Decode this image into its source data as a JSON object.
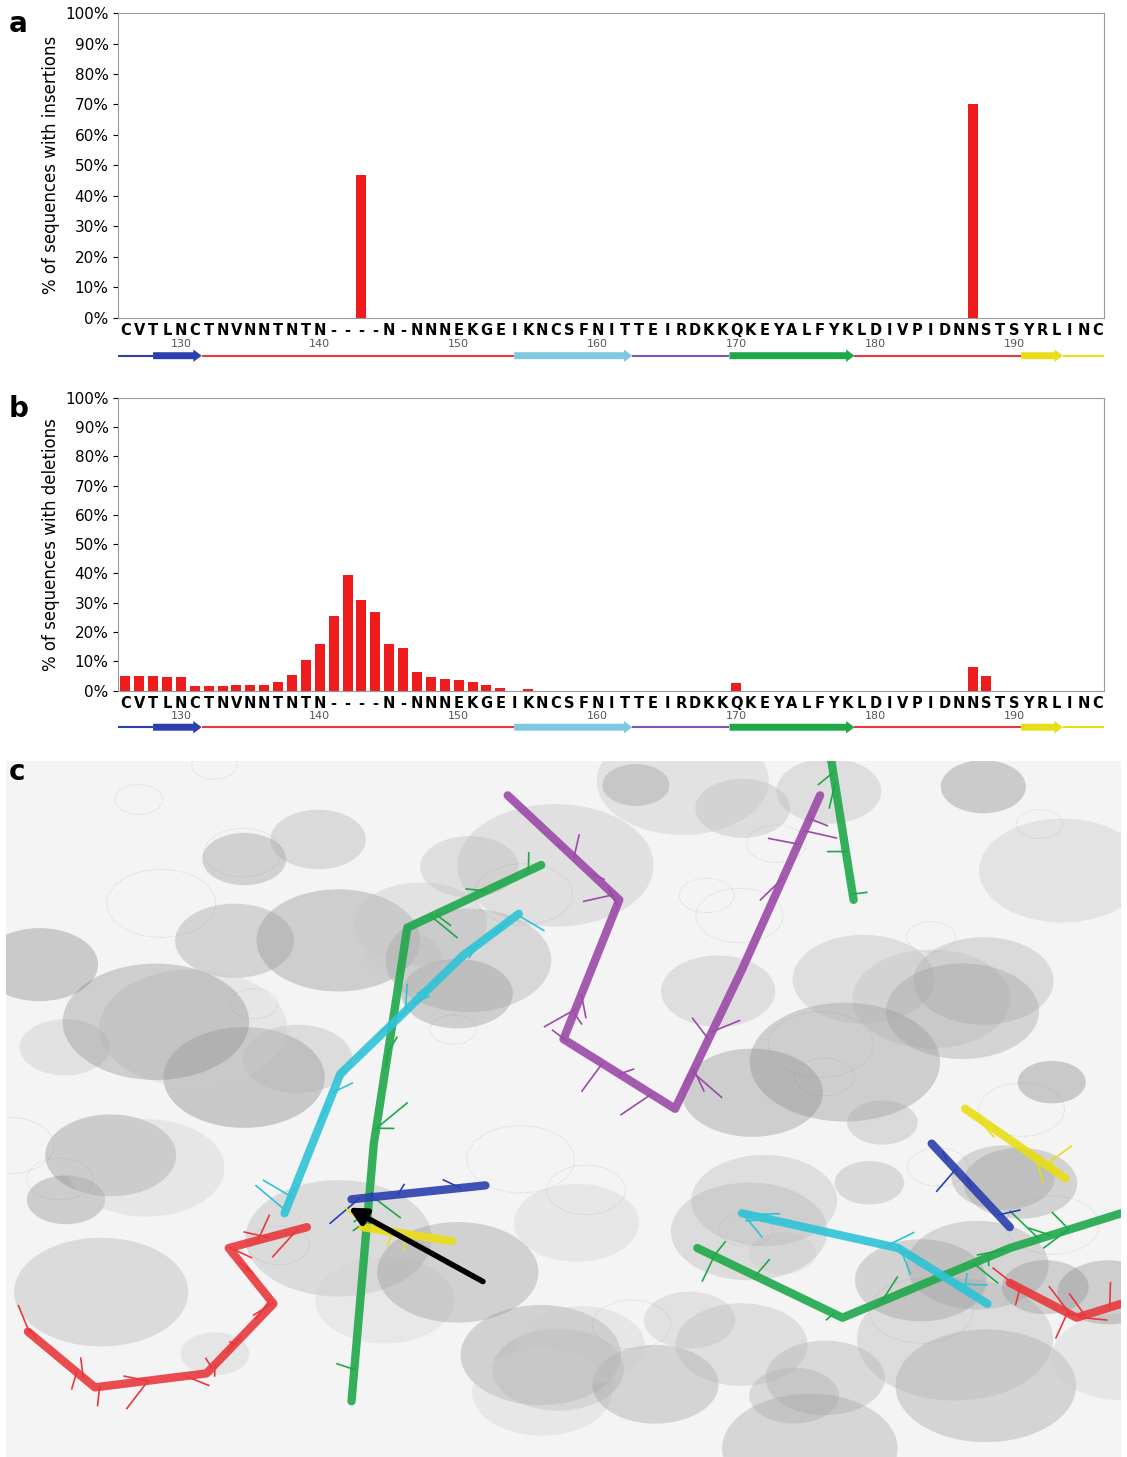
{
  "chart_data": [
    {
      "type": "bar",
      "title": "a",
      "ylabel": "% of sequences with insertions",
      "categories": [
        "C",
        "V",
        "T",
        "L",
        "N",
        "C",
        "T",
        "N",
        "V",
        "N",
        "N",
        "T",
        "N",
        "T",
        "N",
        "-",
        "-",
        "-",
        "-",
        "N",
        "-",
        "N",
        "N",
        "N",
        "E",
        "K",
        "G",
        "E",
        "I",
        "K",
        "N",
        "C",
        "S",
        "F",
        "N",
        "I",
        "T",
        "T",
        "E",
        "I",
        "R",
        "D",
        "K",
        "K",
        "Q",
        "K",
        "E",
        "Y",
        "A",
        "L",
        "F",
        "Y",
        "K",
        "L",
        "D",
        "I",
        "V",
        "P",
        "I",
        "D",
        "N",
        "N",
        "S",
        "T",
        "S",
        "Y",
        "R",
        "L",
        "I",
        "N",
        "C"
      ],
      "position_ticks": [
        {
          "value": 4,
          "label": "130"
        },
        {
          "value": 14,
          "label": "140"
        },
        {
          "value": 24,
          "label": "150"
        },
        {
          "value": 34,
          "label": "160"
        },
        {
          "value": 44,
          "label": "170"
        },
        {
          "value": 54,
          "label": "180"
        },
        {
          "value": 64,
          "label": "190"
        }
      ],
      "values": [
        0,
        0,
        0,
        0,
        0,
        0,
        0,
        0,
        0,
        0,
        0,
        0,
        0,
        0,
        0,
        0,
        0,
        47,
        0,
        0,
        0,
        0,
        0,
        0,
        0,
        0,
        0,
        0,
        0,
        0,
        0,
        0,
        0,
        0,
        0,
        0,
        0,
        0,
        0,
        0,
        0,
        0,
        0,
        0,
        0,
        0,
        0,
        0,
        0,
        0,
        0,
        0,
        0,
        0,
        0,
        0,
        0,
        0,
        0,
        0,
        0,
        70,
        0,
        0,
        0,
        0,
        0,
        0,
        0,
        0,
        0
      ],
      "color": "#ee1c1c",
      "ylim": [
        0,
        100
      ],
      "yticks": [
        {
          "value": 0,
          "label": "0%"
        },
        {
          "value": 10,
          "label": "10%"
        },
        {
          "value": 20,
          "label": "20%"
        },
        {
          "value": 30,
          "label": "30%"
        },
        {
          "value": 40,
          "label": "40%"
        },
        {
          "value": 50,
          "label": "50%"
        },
        {
          "value": 60,
          "label": "60%"
        },
        {
          "value": 70,
          "label": "70%"
        },
        {
          "value": 80,
          "label": "80%"
        },
        {
          "value": 90,
          "label": "90%"
        },
        {
          "value": 100,
          "label": "100%"
        }
      ],
      "grid": false
    },
    {
      "type": "bar",
      "title": "b",
      "ylabel": "% of sequences with deletions",
      "categories": [
        "C",
        "V",
        "T",
        "L",
        "N",
        "C",
        "T",
        "N",
        "V",
        "N",
        "N",
        "T",
        "N",
        "T",
        "N",
        "-",
        "-",
        "-",
        "-",
        "N",
        "-",
        "N",
        "N",
        "N",
        "E",
        "K",
        "G",
        "E",
        "I",
        "K",
        "N",
        "C",
        "S",
        "F",
        "N",
        "I",
        "T",
        "T",
        "E",
        "I",
        "R",
        "D",
        "K",
        "K",
        "Q",
        "K",
        "E",
        "Y",
        "A",
        "L",
        "F",
        "Y",
        "K",
        "L",
        "D",
        "I",
        "V",
        "P",
        "I",
        "D",
        "N",
        "N",
        "S",
        "T",
        "S",
        "Y",
        "R",
        "L",
        "I",
        "N",
        "C"
      ],
      "position_ticks": [
        {
          "value": 4,
          "label": "130"
        },
        {
          "value": 14,
          "label": "140"
        },
        {
          "value": 24,
          "label": "150"
        },
        {
          "value": 34,
          "label": "160"
        },
        {
          "value": 44,
          "label": "170"
        },
        {
          "value": 54,
          "label": "180"
        },
        {
          "value": 64,
          "label": "190"
        }
      ],
      "values": [
        5,
        5,
        5,
        4.5,
        4.5,
        1.5,
        1.5,
        1.5,
        2,
        2,
        2,
        3,
        5.5,
        10.5,
        16,
        25.5,
        39.5,
        31,
        27,
        16,
        14.5,
        6.5,
        4.5,
        4,
        3.5,
        3,
        2,
        1,
        0,
        0.5,
        0,
        0,
        0,
        0,
        0,
        0,
        0,
        0,
        0,
        0,
        0,
        0,
        0,
        0,
        2.5,
        0,
        0,
        0,
        0,
        0,
        0,
        0,
        0,
        0,
        0,
        0,
        0,
        0,
        0,
        0,
        0,
        8,
        5,
        0,
        0,
        0,
        0,
        0,
        0,
        0,
        0
      ],
      "color": "#ee1c1c",
      "ylim": [
        0,
        100
      ],
      "yticks": [
        {
          "value": 0,
          "label": "0%"
        },
        {
          "value": 10,
          "label": "10%"
        },
        {
          "value": 20,
          "label": "20%"
        },
        {
          "value": 30,
          "label": "30%"
        },
        {
          "value": 40,
          "label": "40%"
        },
        {
          "value": 50,
          "label": "50%"
        },
        {
          "value": 60,
          "label": "60%"
        },
        {
          "value": 70,
          "label": "70%"
        },
        {
          "value": 80,
          "label": "80%"
        },
        {
          "value": 90,
          "label": "90%"
        },
        {
          "value": 100,
          "label": "100%"
        }
      ],
      "grid": false
    }
  ],
  "panel_c": {
    "title": "c"
  }
}
